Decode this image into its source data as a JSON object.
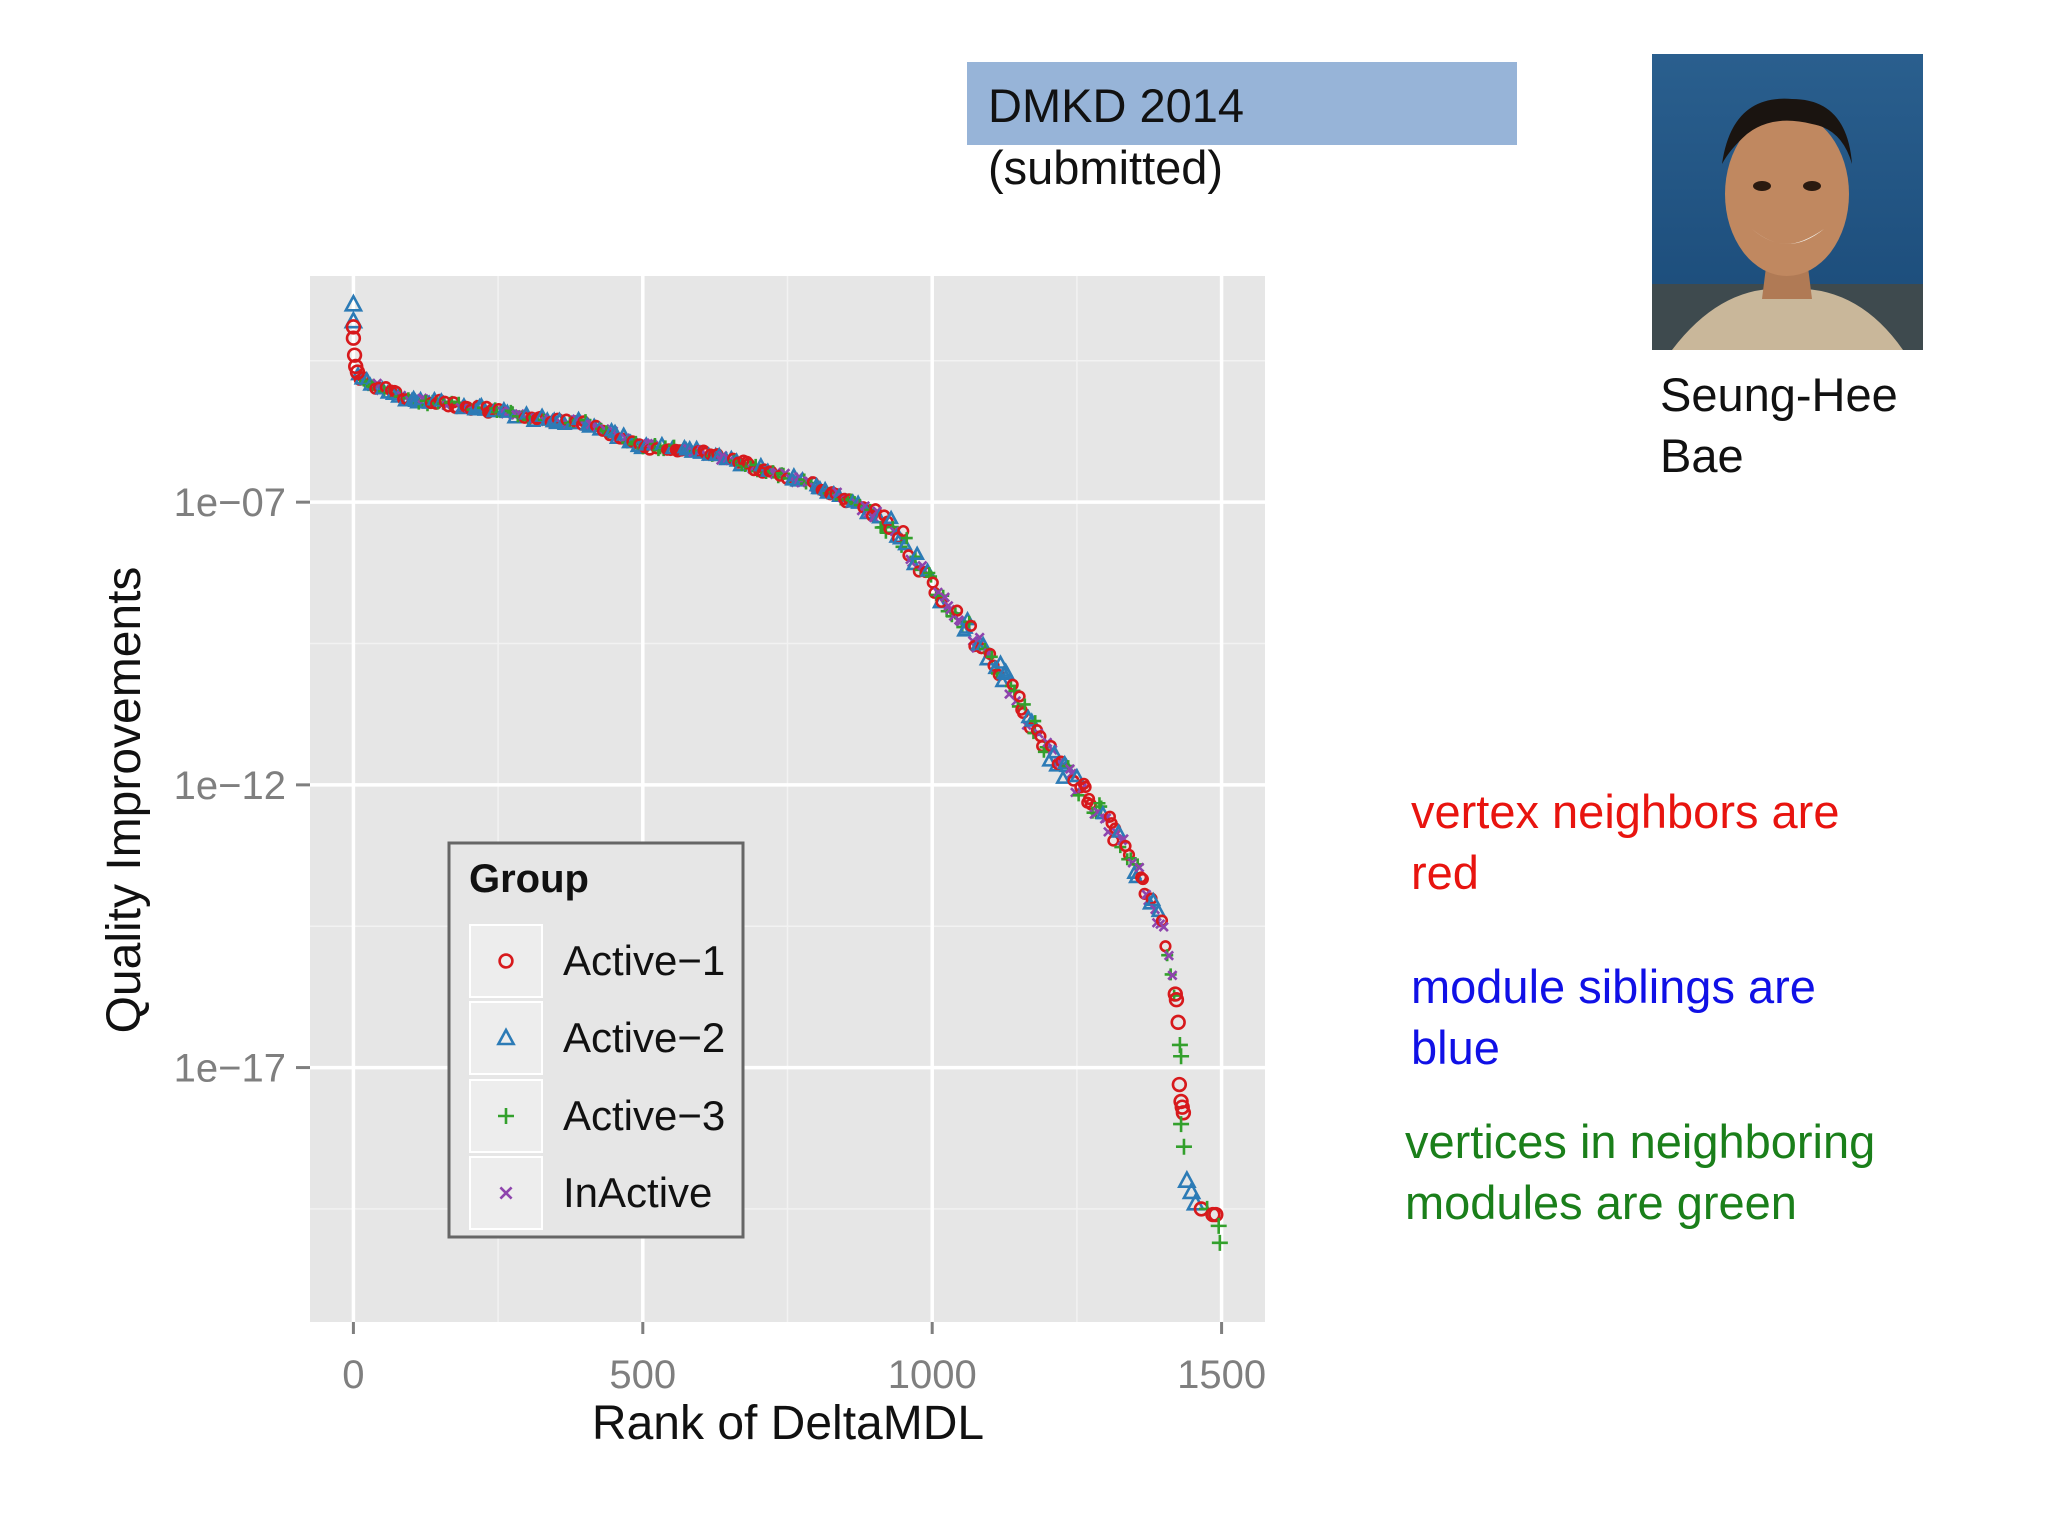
{
  "header": {
    "venue_line1": "DMKD 2014",
    "venue_line2": "(submitted)",
    "banner_color": "#97b4d8"
  },
  "person": {
    "name_line1": "Seung-Hee",
    "name_line2": "Bae",
    "photo_icon": "portrait-photo-icon"
  },
  "notes": [
    {
      "line1": "vertex neighbors are",
      "line2": "red",
      "color": "#e8140f"
    },
    {
      "line1": "module siblings are",
      "line2": "blue",
      "color": "#1010e6"
    },
    {
      "line1": "vertices in neighboring",
      "line2": "modules are green",
      "color": "#1a7f1a"
    }
  ],
  "chart_data": {
    "type": "scatter",
    "title": "",
    "xlabel": "Rank of DeltaMDL",
    "ylabel": "Quality Improvements",
    "xlim": [
      -75,
      1575
    ],
    "ylim_log10": [
      -21.5,
      -3.0
    ],
    "y_scale": "log10",
    "x_ticks": [
      0,
      500,
      1000,
      1500
    ],
    "x_tick_labels": [
      "0",
      "500",
      "1000",
      "1500"
    ],
    "y_ticks_log10": [
      -7,
      -12,
      -17
    ],
    "y_tick_labels": [
      "1e−07",
      "1e−12",
      "1e−17"
    ],
    "grid": true,
    "legend_title": "Group",
    "legend_position": "bottom-left inside plot",
    "series": [
      {
        "name": "Active−1",
        "marker": "circle",
        "color": "#d7191c"
      },
      {
        "name": "Active−2",
        "marker": "triangle",
        "color": "#2c7bb6"
      },
      {
        "name": "Active−3",
        "marker": "plus",
        "color": "#33a02c"
      },
      {
        "name": "InActive",
        "marker": "cross",
        "color": "#8e44ad"
      }
    ],
    "curve_log10": [
      [
        0,
        -3.9
      ],
      [
        1,
        -4.2
      ],
      [
        3,
        -4.5
      ],
      [
        6,
        -4.7
      ],
      [
        10,
        -4.8
      ],
      [
        50,
        -5.0
      ],
      [
        100,
        -5.2
      ],
      [
        200,
        -5.3
      ],
      [
        300,
        -5.5
      ],
      [
        400,
        -5.6
      ],
      [
        450,
        -5.8
      ],
      [
        500,
        -6.0
      ],
      [
        600,
        -6.1
      ],
      [
        700,
        -6.4
      ],
      [
        800,
        -6.7
      ],
      [
        880,
        -7.1
      ],
      [
        940,
        -7.5
      ],
      [
        1000,
        -8.5
      ],
      [
        1100,
        -9.7
      ],
      [
        1200,
        -11.4
      ],
      [
        1300,
        -12.6
      ],
      [
        1360,
        -13.6
      ],
      [
        1400,
        -14.6
      ],
      [
        1420,
        -15.7
      ],
      [
        1430,
        -16.9
      ],
      [
        1440,
        -18.8
      ],
      [
        1460,
        -19.2
      ],
      [
        1490,
        -19.6
      ],
      [
        1500,
        -20.1
      ]
    ],
    "points": [
      {
        "x": 0,
        "logy": -3.5,
        "s": 1
      },
      {
        "x": 0,
        "logy": -3.8,
        "s": 1
      },
      {
        "x": 0,
        "logy": -3.9,
        "s": 0
      },
      {
        "x": 0,
        "logy": -4.1,
        "s": 0
      },
      {
        "x": 2,
        "logy": -4.4,
        "s": 0
      },
      {
        "x": 4,
        "logy": -4.6,
        "s": 0
      },
      {
        "x": 7,
        "logy": -4.7,
        "s": 0
      },
      {
        "x": 1420,
        "logy": -15.7,
        "s": 0
      },
      {
        "x": 1422,
        "logy": -15.8,
        "s": 0
      },
      {
        "x": 1425,
        "logy": -16.2,
        "s": 0
      },
      {
        "x": 1428,
        "logy": -16.6,
        "s": 2
      },
      {
        "x": 1430,
        "logy": -16.8,
        "s": 2
      },
      {
        "x": 1427,
        "logy": -17.3,
        "s": 0
      },
      {
        "x": 1430,
        "logy": -17.6,
        "s": 0
      },
      {
        "x": 1432,
        "logy": -17.7,
        "s": 0
      },
      {
        "x": 1434,
        "logy": -17.8,
        "s": 0
      },
      {
        "x": 1430,
        "logy": -18.0,
        "s": 2
      },
      {
        "x": 1435,
        "logy": -18.4,
        "s": 2
      },
      {
        "x": 1440,
        "logy": -19.0,
        "s": 1
      },
      {
        "x": 1448,
        "logy": -19.2,
        "s": 1
      },
      {
        "x": 1455,
        "logy": -19.4,
        "s": 1
      },
      {
        "x": 1465,
        "logy": -19.5,
        "s": 0
      },
      {
        "x": 1475,
        "logy": -19.5,
        "s": 2
      },
      {
        "x": 1485,
        "logy": -19.6,
        "s": 0
      },
      {
        "x": 1490,
        "logy": -19.6,
        "s": 0
      },
      {
        "x": 1495,
        "logy": -19.8,
        "s": 2
      },
      {
        "x": 1497,
        "logy": -20.1,
        "s": 2
      }
    ]
  }
}
